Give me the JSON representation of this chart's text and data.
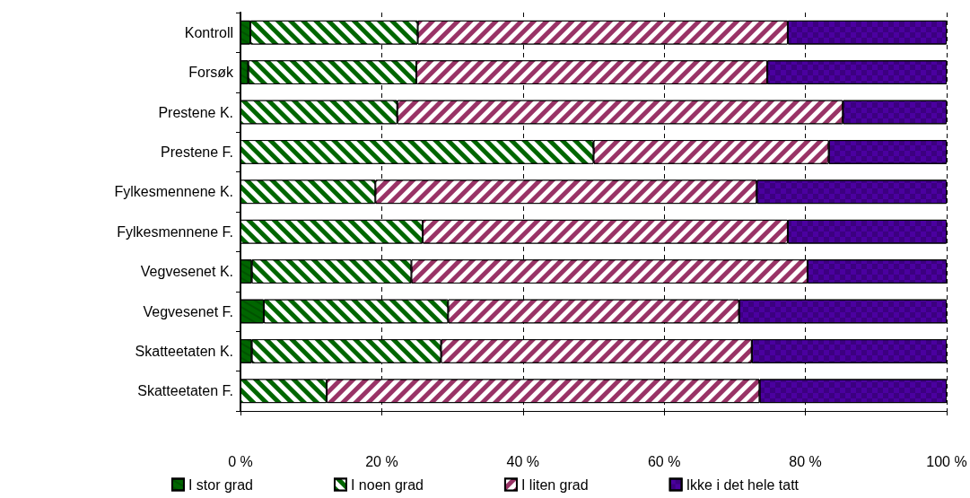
{
  "chart_data": {
    "type": "bar",
    "orientation": "horizontal",
    "stacked": true,
    "categories": [
      "Kontroll",
      "Forsøk",
      "Prestene K.",
      "Prestene F.",
      "Fylkesmennene K.",
      "Fylkesmennene F.",
      "Vegvesenet K.",
      "Vegvesenet F.",
      "Skatteetaten K.",
      "Skatteetaten F."
    ],
    "series": [
      {
        "name": "I stor grad",
        "color": "#006600",
        "values": [
          1.4,
          1.1,
          0,
          0,
          0,
          0,
          1.6,
          3.3,
          1.6,
          0
        ]
      },
      {
        "name": "I noen grad",
        "color": "#006600",
        "values": [
          23.7,
          23.8,
          22.2,
          50.0,
          19.1,
          25.8,
          22.6,
          26.1,
          26.8,
          12.2
        ]
      },
      {
        "name": "I liten grad",
        "color": "#993366",
        "values": [
          52.4,
          49.7,
          63.1,
          33.3,
          54.0,
          51.7,
          56.1,
          41.2,
          44.0,
          61.3
        ]
      },
      {
        "name": "Ikke i det hele tatt",
        "color": "#4b00a0",
        "values": [
          22.5,
          25.4,
          14.7,
          16.7,
          26.9,
          22.5,
          19.7,
          29.4,
          27.6,
          26.5
        ]
      }
    ],
    "xlim": [
      0,
      100
    ],
    "xticks": [
      {
        "value": 0,
        "label": "0 %"
      },
      {
        "value": 20,
        "label": "20 %"
      },
      {
        "value": 40,
        "label": "40 %"
      },
      {
        "value": 60,
        "label": "60 %"
      },
      {
        "value": 80,
        "label": "80 %"
      },
      {
        "value": 100,
        "label": "100 %"
      }
    ],
    "grid": "x",
    "legend": "bottom"
  }
}
